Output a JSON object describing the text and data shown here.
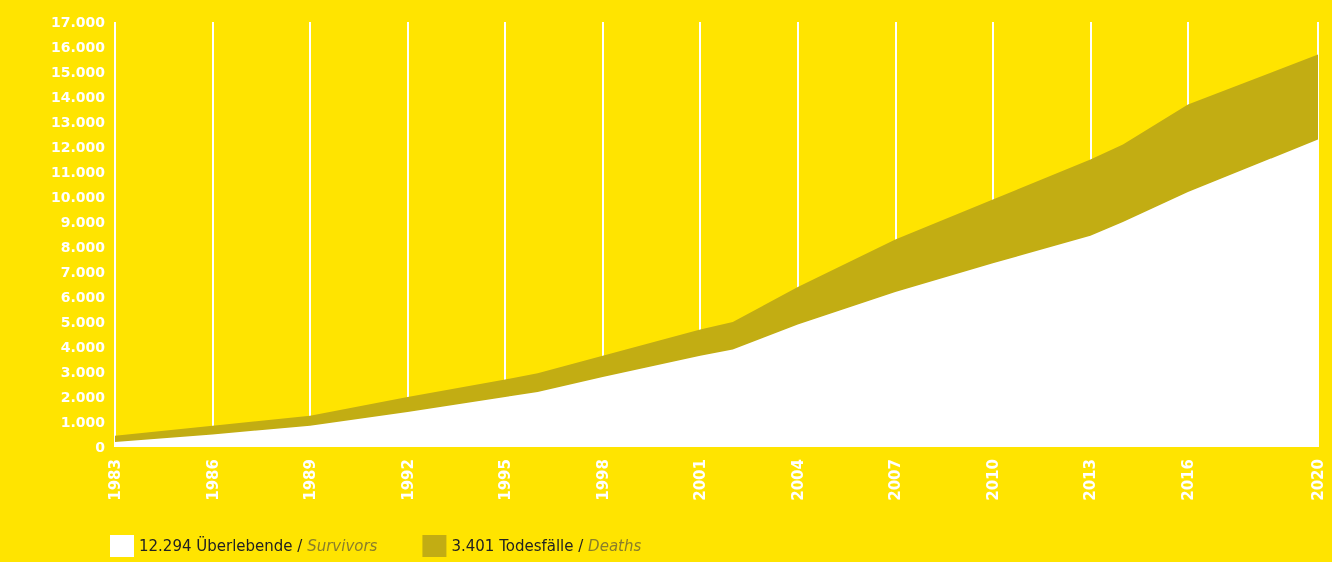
{
  "chart_data": {
    "type": "area",
    "stacked": true,
    "x": [
      1983,
      1986,
      1989,
      1992,
      1995,
      1996,
      1998,
      2001,
      2002,
      2004,
      2007,
      2010,
      2013,
      2014,
      2016,
      2020
    ],
    "series": [
      {
        "name": "12.294 Überlebende / Survivors",
        "color": "#ffffff",
        "values": [
          200,
          500,
          850,
          1400,
          2000,
          2200,
          2800,
          3650,
          3900,
          4900,
          6200,
          7350,
          8450,
          9000,
          10200,
          12300
        ]
      },
      {
        "name": "3.401 Todesfälle / Deaths",
        "color": "#c2ad13",
        "values": [
          250,
          350,
          400,
          600,
          700,
          750,
          850,
          1050,
          1100,
          1500,
          2100,
          2550,
          3050,
          3100,
          3500,
          3400
        ]
      }
    ],
    "xlim": [
      1983,
      2020
    ],
    "xticks": [
      1983,
      1986,
      1989,
      1992,
      1995,
      1998,
      2001,
      2004,
      2007,
      2010,
      2013,
      2016,
      2020
    ],
    "ylim": [
      0,
      17000
    ],
    "yticks": [
      0,
      {
        "value": 1000,
        "label": "1.000"
      },
      {
        "value": 2000,
        "label": "2.000"
      },
      {
        "value": 3000,
        "label": "3.000"
      },
      {
        "value": 4000,
        "label": "4.000"
      },
      {
        "value": 5000,
        "label": "5.000"
      },
      {
        "value": 6000,
        "label": "6.000"
      },
      {
        "value": 7000,
        "label": "7.000"
      },
      {
        "value": 8000,
        "label": "8.000"
      },
      {
        "value": 9000,
        "label": "9.000"
      },
      {
        "value": 10000,
        "label": "10.000"
      },
      {
        "value": 11000,
        "label": "11.000"
      },
      {
        "value": 12000,
        "label": "12.000"
      },
      {
        "value": 13000,
        "label": "13.000"
      },
      {
        "value": 14000,
        "label": "14.000"
      },
      {
        "value": 15000,
        "label": "15.000"
      },
      {
        "value": 16000,
        "label": "16.000"
      },
      {
        "value": 17000,
        "label": "17.000"
      }
    ],
    "grid": "x",
    "legend": "bottom left",
    "marker": "none"
  }
}
